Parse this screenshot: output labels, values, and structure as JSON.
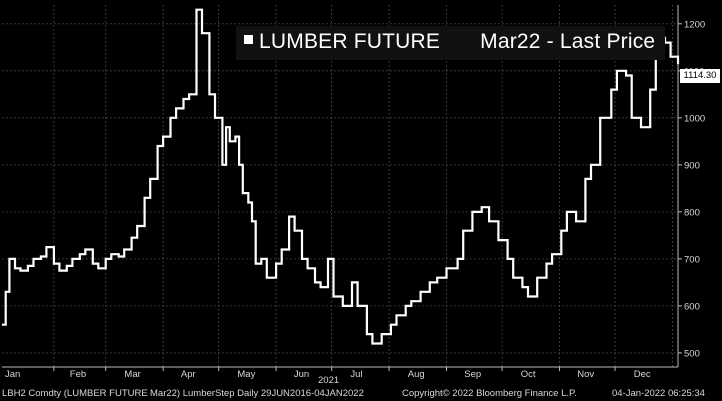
{
  "legend": {
    "name": "LUMBER FUTURE",
    "contract": "Mar22 - Last Price"
  },
  "last_price_label": "1114.30",
  "year_label": "2021",
  "footer": {
    "ticker": "LBH2 Comdty (LUMBER FUTURE",
    "mid": "Mar22) LumberStep  Daily 29JUN2016-04JAN2022",
    "copyright": "Copyright© 2022 Bloomberg Finance L.P.",
    "timestamp": "04-Jan-2022 06:25:34"
  },
  "colors": {
    "background": "#000000",
    "line": "#ffffff",
    "grid": "#5a5a5a",
    "text": "#d8d8d8"
  },
  "chart_data": {
    "type": "line",
    "xlabel": "",
    "ylabel": "",
    "x_ticks": [
      "Jan",
      "Feb",
      "Mar",
      "Apr",
      "May",
      "Jun",
      "Jul",
      "Aug",
      "Sep",
      "Oct",
      "Nov",
      "Dec"
    ],
    "y_ticks": [
      500,
      600,
      700,
      800,
      900,
      1000,
      1100,
      1200
    ],
    "ylim": [
      470,
      1240
    ],
    "xlim": [
      "2021-01-04",
      "2022-01-04"
    ],
    "grid": true,
    "step": true,
    "series": [
      {
        "name": "LUMBER FUTURE Mar22 - Last Price",
        "x": [
          "2021-01-04",
          "2021-01-06",
          "2021-01-08",
          "2021-01-11",
          "2021-01-14",
          "2021-01-18",
          "2021-01-21",
          "2021-01-25",
          "2021-01-28",
          "2021-02-01",
          "2021-02-04",
          "2021-02-08",
          "2021-02-11",
          "2021-02-15",
          "2021-02-18",
          "2021-02-22",
          "2021-02-25",
          "2021-03-01",
          "2021-03-04",
          "2021-03-08",
          "2021-03-11",
          "2021-03-15",
          "2021-03-18",
          "2021-03-22",
          "2021-03-25",
          "2021-03-29",
          "2021-04-01",
          "2021-04-05",
          "2021-04-08",
          "2021-04-12",
          "2021-04-15",
          "2021-04-19",
          "2021-04-22",
          "2021-04-26",
          "2021-04-29",
          "2021-05-03",
          "2021-05-05",
          "2021-05-07",
          "2021-05-10",
          "2021-05-12",
          "2021-05-14",
          "2021-05-17",
          "2021-05-19",
          "2021-05-21",
          "2021-05-24",
          "2021-05-27",
          "2021-06-01",
          "2021-06-04",
          "2021-06-08",
          "2021-06-11",
          "2021-06-15",
          "2021-06-18",
          "2021-06-22",
          "2021-06-25",
          "2021-06-29",
          "2021-07-02",
          "2021-07-07",
          "2021-07-12",
          "2021-07-15",
          "2021-07-20",
          "2021-07-23",
          "2021-07-28",
          "2021-08-02",
          "2021-08-05",
          "2021-08-10",
          "2021-08-13",
          "2021-08-18",
          "2021-08-23",
          "2021-08-27",
          "2021-09-01",
          "2021-09-07",
          "2021-09-10",
          "2021-09-15",
          "2021-09-20",
          "2021-09-24",
          "2021-09-29",
          "2021-10-04",
          "2021-10-07",
          "2021-10-12",
          "2021-10-15",
          "2021-10-20",
          "2021-10-25",
          "2021-10-28",
          "2021-11-02",
          "2021-11-05",
          "2021-11-10",
          "2021-11-15",
          "2021-11-18",
          "2021-11-23",
          "2021-11-29",
          "2021-12-02",
          "2021-12-07",
          "2021-12-10",
          "2021-12-15",
          "2021-12-20",
          "2021-12-23",
          "2021-12-28",
          "2021-12-31",
          "2022-01-04"
        ],
        "values": [
          560,
          630,
          700,
          680,
          675,
          685,
          700,
          705,
          725,
          690,
          675,
          685,
          700,
          710,
          720,
          690,
          680,
          700,
          710,
          705,
          720,
          745,
          770,
          830,
          870,
          940,
          960,
          1000,
          1020,
          1040,
          1050,
          1230,
          1180,
          1050,
          1000,
          900,
          980,
          950,
          960,
          900,
          840,
          820,
          780,
          690,
          700,
          660,
          690,
          720,
          790,
          760,
          700,
          680,
          650,
          640,
          700,
          620,
          600,
          650,
          600,
          540,
          520,
          540,
          560,
          580,
          600,
          610,
          630,
          650,
          660,
          680,
          700,
          760,
          800,
          810,
          780,
          740,
          700,
          660,
          640,
          620,
          660,
          690,
          710,
          760,
          800,
          780,
          870,
          900,
          1000,
          1060,
          1100,
          1090,
          1000,
          980,
          1060,
          1170,
          1160,
          1130,
          1114.3
        ]
      }
    ]
  }
}
